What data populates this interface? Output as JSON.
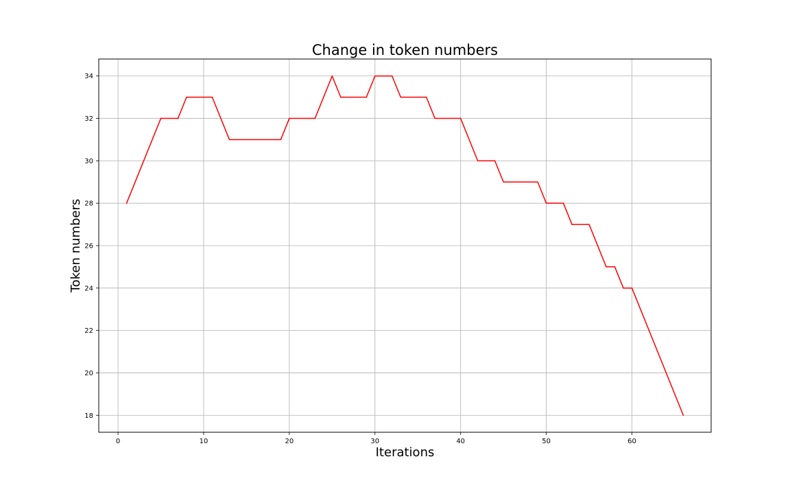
{
  "chart_data": {
    "type": "line",
    "title": "Change in token numbers",
    "xlabel": "Iterations",
    "ylabel": "Token numbers",
    "xlim": [
      -2.25,
      69.25
    ],
    "ylim": [
      17.2,
      34.8
    ],
    "xticks": [
      0,
      10,
      20,
      30,
      40,
      50,
      60
    ],
    "yticks": [
      18,
      20,
      22,
      24,
      26,
      28,
      30,
      32,
      34
    ],
    "grid": true,
    "series": [
      {
        "color": "#ff0000",
        "x": [
          1,
          5,
          7,
          8,
          11,
          13,
          19,
          20,
          23,
          25,
          26,
          29,
          30,
          32,
          33,
          36,
          37,
          40,
          42,
          44,
          45,
          49,
          50,
          52,
          53,
          55,
          57,
          58,
          59,
          60,
          66
        ],
        "y": [
          28,
          32,
          32,
          33,
          33,
          31,
          31,
          32,
          32,
          34,
          33,
          33,
          34,
          34,
          33,
          33,
          32,
          32,
          30,
          30,
          29,
          29,
          28,
          28,
          27,
          27,
          25,
          25,
          24,
          24,
          18
        ]
      }
    ]
  }
}
